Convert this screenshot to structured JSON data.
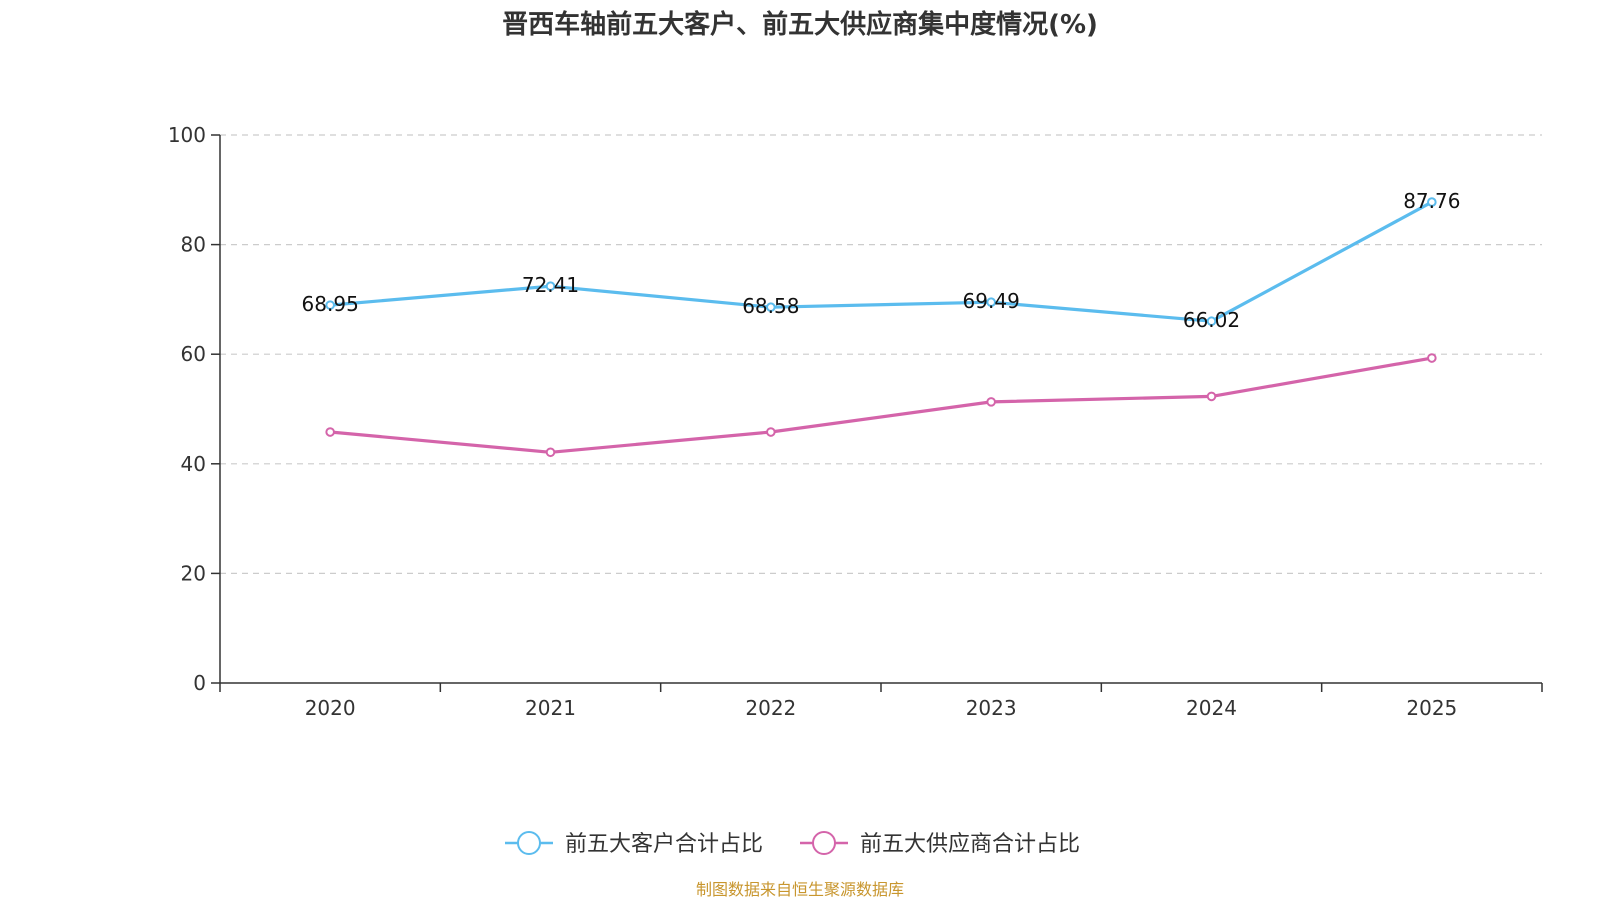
{
  "chart_data": {
    "type": "line",
    "title": "晋西车轴前五大客户、前五大供应商集中度情况(%)",
    "categories": [
      "2020",
      "2021",
      "2022",
      "2023",
      "2024",
      "2025"
    ],
    "ylim": [
      0,
      100
    ],
    "yticks": [
      0,
      20,
      40,
      60,
      80,
      100
    ],
    "xlabel": "",
    "ylabel": "",
    "grid": true,
    "legend_position": "bottom-center",
    "series": [
      {
        "name": "前五大客户合计占比",
        "color": "#5bbcee",
        "values": [
          68.95,
          72.41,
          68.58,
          69.49,
          66.02,
          87.76
        ],
        "labels": [
          "68.95",
          "72.41",
          "68.58",
          "69.49",
          "66.02",
          "87.76"
        ],
        "show_labels": true
      },
      {
        "name": "前五大供应商合计占比",
        "color": "#d464aa",
        "values": [
          45.8,
          42.1,
          45.8,
          51.3,
          52.3,
          59.3
        ],
        "show_labels": false
      }
    ],
    "source": "制图数据来自恒生聚源数据库"
  }
}
